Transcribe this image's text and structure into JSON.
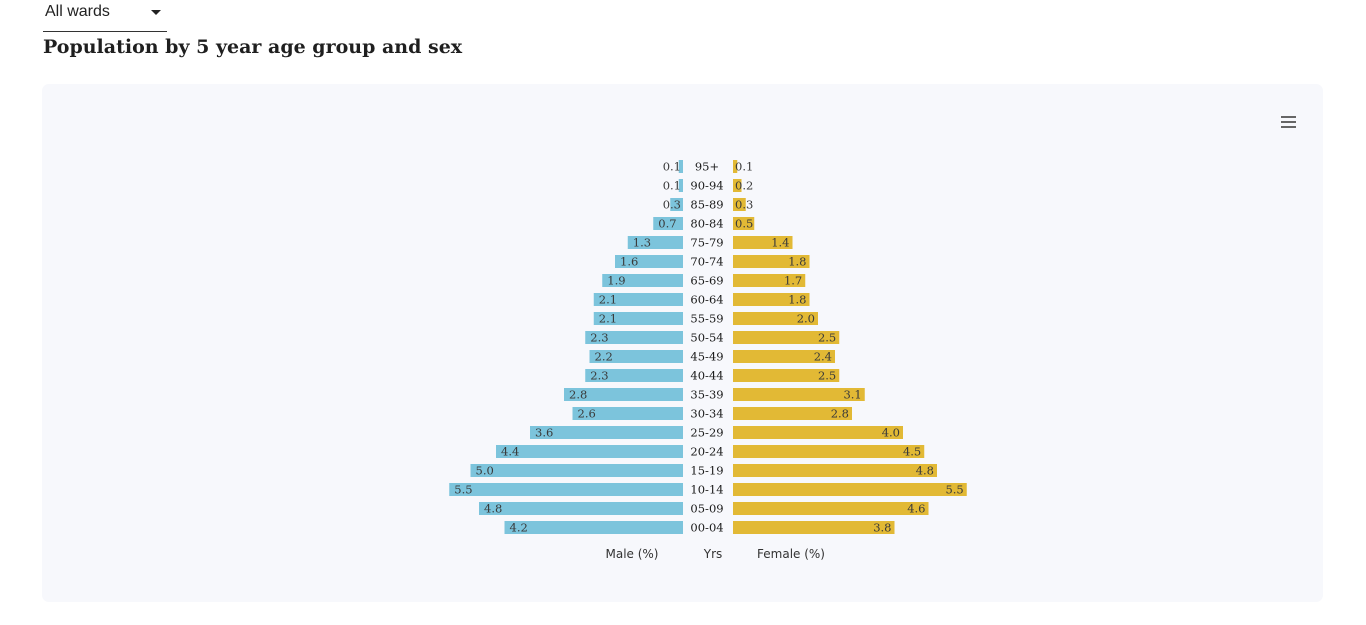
{
  "filter": {
    "selected": "All wards"
  },
  "page_title": "Population by 5 year age group and sex",
  "chart_menu_icon": "hamburger-menu-icon",
  "colors": {
    "male": "#7cc4dc",
    "female": "#e2b935",
    "card_background": "#f7f8fc"
  },
  "chart_data": {
    "type": "bar",
    "orientation": "horizontal",
    "layout": "population-pyramid",
    "categories": [
      "95+",
      "90-94",
      "85-89",
      "80-84",
      "75-79",
      "70-74",
      "65-69",
      "60-64",
      "55-59",
      "50-54",
      "45-49",
      "40-44",
      "35-39",
      "30-34",
      "25-29",
      "20-24",
      "15-19",
      "10-14",
      "05-09",
      "00-04"
    ],
    "series": [
      {
        "name": "Male (%)",
        "color": "#7cc4dc",
        "values": [
          0.1,
          0.1,
          0.3,
          0.7,
          1.3,
          1.6,
          1.9,
          2.1,
          2.1,
          2.3,
          2.2,
          2.3,
          2.8,
          2.6,
          3.6,
          4.4,
          5.0,
          5.5,
          4.8,
          4.2
        ]
      },
      {
        "name": "Female (%)",
        "color": "#e2b935",
        "values": [
          0.1,
          0.2,
          0.3,
          0.5,
          1.4,
          1.8,
          1.7,
          1.8,
          2.0,
          2.5,
          2.4,
          2.5,
          3.1,
          2.8,
          4.0,
          4.5,
          4.8,
          5.5,
          4.6,
          3.8
        ]
      }
    ],
    "labels": {
      "male": "Male (%)",
      "category": "Yrs",
      "female": "Female (%)"
    },
    "value_format": "0.0",
    "grid": false
  }
}
